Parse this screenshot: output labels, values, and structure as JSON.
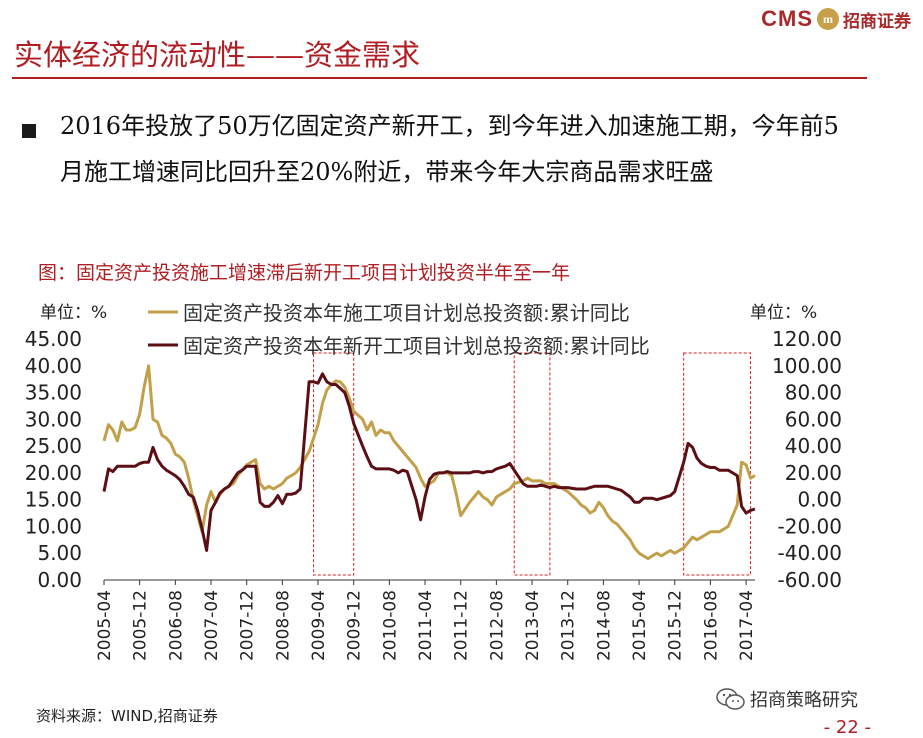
{
  "brand": {
    "cms": "CMS",
    "seal": "m",
    "name_cn": "招商证券",
    "accent": "#a8292a"
  },
  "slide": {
    "title": "实体经济的流动性——资金需求",
    "bullet_text": "2016年投放了50万亿固定资产新开工，到今年进入加速施工期，今年前5月施工增速同比回升至20%附近，带来今年大宗商品需求旺盛",
    "accent": "#b01e23"
  },
  "chart_data": {
    "type": "line",
    "title": "图：固定资产投资施工增速滞后新开工项目计划投资半年至一年",
    "unit_left": "单位：%",
    "unit_right": "单位：%",
    "x_ticks": [
      "2005-04",
      "2005-12",
      "2006-08",
      "2007-04",
      "2007-12",
      "2008-08",
      "2009-04",
      "2009-12",
      "2010-08",
      "2011-04",
      "2011-12",
      "2012-08",
      "2013-04",
      "2013-12",
      "2014-08",
      "2015-04",
      "2015-12",
      "2016-08",
      "2017-04"
    ],
    "x_range": [
      "2005-04",
      "2017-06"
    ],
    "y_left": {
      "range": [
        0,
        45
      ],
      "step": 5,
      "tick_labels": [
        "0.00",
        "5.00",
        "10.00",
        "15.00",
        "20.00",
        "25.00",
        "30.00",
        "35.00",
        "40.00",
        "45.00"
      ]
    },
    "y_right": {
      "range": [
        -60,
        120
      ],
      "step": 20,
      "tick_labels": [
        "-60.00",
        "-40.00",
        "-20.00",
        "0.00",
        "20.00",
        "40.00",
        "60.00",
        "80.00",
        "100.00",
        "120.00"
      ]
    },
    "series": [
      {
        "name": "固定资产投资本年施工项目计划总投资额:累计同比",
        "axis": "left",
        "color": "#c2a04a",
        "points": [
          [
            "2005-04",
            26
          ],
          [
            "2005-05",
            29
          ],
          [
            "2005-06",
            28
          ],
          [
            "2005-07",
            26
          ],
          [
            "2005-08",
            29.5
          ],
          [
            "2005-09",
            28
          ],
          [
            "2005-10",
            28
          ],
          [
            "2005-11",
            28.5
          ],
          [
            "2005-12",
            31
          ],
          [
            "2006-01",
            36
          ],
          [
            "2006-02",
            40
          ],
          [
            "2006-03",
            30
          ],
          [
            "2006-04",
            29.5
          ],
          [
            "2006-05",
            27
          ],
          [
            "2006-06",
            26.5
          ],
          [
            "2006-07",
            25.5
          ],
          [
            "2006-08",
            23.5
          ],
          [
            "2006-09",
            23
          ],
          [
            "2006-10",
            22
          ],
          [
            "2006-11",
            19
          ],
          [
            "2006-12",
            15
          ],
          [
            "2007-02",
            9
          ],
          [
            "2007-03",
            14
          ],
          [
            "2007-04",
            16.5
          ],
          [
            "2007-05",
            14.5
          ],
          [
            "2007-06",
            16
          ],
          [
            "2007-07",
            17
          ],
          [
            "2007-08",
            17.5
          ],
          [
            "2007-09",
            18
          ],
          [
            "2007-10",
            19.5
          ],
          [
            "2007-11",
            20.5
          ],
          [
            "2007-12",
            21.5
          ],
          [
            "2008-02",
            22.5
          ],
          [
            "2008-03",
            18
          ],
          [
            "2008-04",
            17
          ],
          [
            "2008-05",
            17.5
          ],
          [
            "2008-06",
            17
          ],
          [
            "2008-07",
            17.5
          ],
          [
            "2008-08",
            18
          ],
          [
            "2008-09",
            19
          ],
          [
            "2008-10",
            19.5
          ],
          [
            "2008-11",
            20
          ],
          [
            "2008-12",
            21
          ],
          [
            "2009-02",
            24
          ],
          [
            "2009-03",
            26.5
          ],
          [
            "2009-04",
            29
          ],
          [
            "2009-05",
            33
          ],
          [
            "2009-06",
            35.5
          ],
          [
            "2009-07",
            36.5
          ],
          [
            "2009-08",
            37.2
          ],
          [
            "2009-09",
            37
          ],
          [
            "2009-10",
            36
          ],
          [
            "2009-11",
            34
          ],
          [
            "2009-12",
            31.5
          ],
          [
            "2010-02",
            30
          ],
          [
            "2010-03",
            28
          ],
          [
            "2010-04",
            29.5
          ],
          [
            "2010-05",
            27
          ],
          [
            "2010-06",
            28
          ],
          [
            "2010-07",
            27.5
          ],
          [
            "2010-08",
            27.5
          ],
          [
            "2010-09",
            26
          ],
          [
            "2010-10",
            25
          ],
          [
            "2010-11",
            24
          ],
          [
            "2010-12",
            23
          ],
          [
            "2011-02",
            21
          ],
          [
            "2011-03",
            19
          ],
          [
            "2011-04",
            17.5
          ],
          [
            "2011-05",
            18
          ],
          [
            "2011-06",
            18.5
          ],
          [
            "2011-07",
            20
          ],
          [
            "2011-08",
            20
          ],
          [
            "2011-09",
            20
          ],
          [
            "2011-10",
            19.5
          ],
          [
            "2011-11",
            16
          ],
          [
            "2011-12",
            12
          ],
          [
            "2012-02",
            14.5
          ],
          [
            "2012-03",
            15.5
          ],
          [
            "2012-04",
            16.5
          ],
          [
            "2012-05",
            15.5
          ],
          [
            "2012-06",
            15
          ],
          [
            "2012-07",
            14
          ],
          [
            "2012-08",
            15.5
          ],
          [
            "2012-09",
            16
          ],
          [
            "2012-10",
            16.5
          ],
          [
            "2012-11",
            17
          ],
          [
            "2012-12",
            18
          ],
          [
            "2013-02",
            18.5
          ],
          [
            "2013-03",
            19
          ],
          [
            "2013-04",
            18.5
          ],
          [
            "2013-05",
            18.5
          ],
          [
            "2013-06",
            18.5
          ],
          [
            "2013-07",
            18
          ],
          [
            "2013-08",
            18
          ],
          [
            "2013-09",
            18
          ],
          [
            "2013-10",
            17.5
          ],
          [
            "2013-11",
            17
          ],
          [
            "2013-12",
            16.5
          ],
          [
            "2014-02",
            15
          ],
          [
            "2014-03",
            14
          ],
          [
            "2014-04",
            13.5
          ],
          [
            "2014-05",
            12.5
          ],
          [
            "2014-06",
            13
          ],
          [
            "2014-07",
            14.5
          ],
          [
            "2014-08",
            13.5
          ],
          [
            "2014-09",
            12
          ],
          [
            "2014-10",
            11
          ],
          [
            "2014-11",
            10.5
          ],
          [
            "2014-12",
            9.5
          ],
          [
            "2015-02",
            7.5
          ],
          [
            "2015-03",
            6
          ],
          [
            "2015-04",
            5
          ],
          [
            "2015-05",
            4.5
          ],
          [
            "2015-06",
            4
          ],
          [
            "2015-07",
            4.5
          ],
          [
            "2015-08",
            5
          ],
          [
            "2015-09",
            4.5
          ],
          [
            "2015-10",
            5
          ],
          [
            "2015-11",
            5.5
          ],
          [
            "2015-12",
            5
          ],
          [
            "2016-02",
            6
          ],
          [
            "2016-03",
            7
          ],
          [
            "2016-04",
            8
          ],
          [
            "2016-05",
            7.5
          ],
          [
            "2016-06",
            8
          ],
          [
            "2016-07",
            8.5
          ],
          [
            "2016-08",
            9
          ],
          [
            "2016-09",
            9
          ],
          [
            "2016-10",
            9
          ],
          [
            "2016-11",
            9.5
          ],
          [
            "2016-12",
            10
          ],
          [
            "2017-02",
            14
          ],
          [
            "2017-03",
            22
          ],
          [
            "2017-04",
            21.5
          ],
          [
            "2017-05",
            19
          ],
          [
            "2017-06",
            19.5
          ]
        ]
      },
      {
        "name": "固定资产投资本年新开工项目计划总投资额:累计同比",
        "axis": "right",
        "color": "#5b0f14",
        "points": [
          [
            "2005-04",
            6
          ],
          [
            "2005-05",
            23
          ],
          [
            "2005-06",
            21
          ],
          [
            "2005-07",
            25
          ],
          [
            "2005-08",
            25
          ],
          [
            "2005-09",
            25
          ],
          [
            "2005-10",
            25
          ],
          [
            "2005-11",
            25
          ],
          [
            "2005-12",
            27
          ],
          [
            "2006-01",
            28
          ],
          [
            "2006-02",
            28
          ],
          [
            "2006-03",
            39
          ],
          [
            "2006-04",
            30
          ],
          [
            "2006-05",
            25
          ],
          [
            "2006-06",
            22
          ],
          [
            "2006-07",
            20
          ],
          [
            "2006-08",
            18
          ],
          [
            "2006-09",
            15
          ],
          [
            "2006-10",
            10
          ],
          [
            "2006-11",
            4
          ],
          [
            "2006-12",
            2
          ],
          [
            "2007-01",
            -8
          ],
          [
            "2007-02",
            -22
          ],
          [
            "2007-03",
            -38
          ],
          [
            "2007-04",
            -8
          ],
          [
            "2007-05",
            -2
          ],
          [
            "2007-06",
            5
          ],
          [
            "2007-07",
            8
          ],
          [
            "2007-08",
            10
          ],
          [
            "2007-09",
            15
          ],
          [
            "2007-10",
            20
          ],
          [
            "2007-11",
            22
          ],
          [
            "2007-12",
            25
          ],
          [
            "2008-02",
            25
          ],
          [
            "2008-03",
            -2
          ],
          [
            "2008-04",
            -5
          ],
          [
            "2008-05",
            -5
          ],
          [
            "2008-06",
            -2
          ],
          [
            "2008-07",
            3
          ],
          [
            "2008-08",
            -3
          ],
          [
            "2008-09",
            4
          ],
          [
            "2008-10",
            4
          ],
          [
            "2008-11",
            5
          ],
          [
            "2008-12",
            8
          ],
          [
            "2009-02",
            88
          ],
          [
            "2009-03",
            88
          ],
          [
            "2009-04",
            87
          ],
          [
            "2009-05",
            94
          ],
          [
            "2009-06",
            88
          ],
          [
            "2009-07",
            86
          ],
          [
            "2009-08",
            86
          ],
          [
            "2009-09",
            83
          ],
          [
            "2009-10",
            80
          ],
          [
            "2009-11",
            70
          ],
          [
            "2009-12",
            57
          ],
          [
            "2010-02",
            40
          ],
          [
            "2010-03",
            32
          ],
          [
            "2010-04",
            25
          ],
          [
            "2010-05",
            23
          ],
          [
            "2010-06",
            23
          ],
          [
            "2010-07",
            23
          ],
          [
            "2010-08",
            23
          ],
          [
            "2010-09",
            22
          ],
          [
            "2010-10",
            20
          ],
          [
            "2010-11",
            22
          ],
          [
            "2010-12",
            21
          ],
          [
            "2011-02",
            0
          ],
          [
            "2011-03",
            -15
          ],
          [
            "2011-04",
            2
          ],
          [
            "2011-05",
            15
          ],
          [
            "2011-06",
            19
          ],
          [
            "2011-07",
            20
          ],
          [
            "2011-08",
            20
          ],
          [
            "2011-09",
            21
          ],
          [
            "2011-10",
            20
          ],
          [
            "2011-11",
            20
          ],
          [
            "2011-12",
            20
          ],
          [
            "2012-02",
            20
          ],
          [
            "2012-03",
            21
          ],
          [
            "2012-04",
            21
          ],
          [
            "2012-05",
            20
          ],
          [
            "2012-06",
            21
          ],
          [
            "2012-07",
            21
          ],
          [
            "2012-08",
            23
          ],
          [
            "2012-09",
            24
          ],
          [
            "2012-10",
            25
          ],
          [
            "2012-11",
            27
          ],
          [
            "2012-12",
            22
          ],
          [
            "2013-02",
            12
          ],
          [
            "2013-03",
            10
          ],
          [
            "2013-04",
            10
          ],
          [
            "2013-05",
            10
          ],
          [
            "2013-06",
            11
          ],
          [
            "2013-07",
            10
          ],
          [
            "2013-08",
            9
          ],
          [
            "2013-09",
            10
          ],
          [
            "2013-10",
            9
          ],
          [
            "2013-11",
            9
          ],
          [
            "2013-12",
            9
          ],
          [
            "2014-02",
            8
          ],
          [
            "2014-03",
            8
          ],
          [
            "2014-04",
            8
          ],
          [
            "2014-05",
            9
          ],
          [
            "2014-06",
            10
          ],
          [
            "2014-07",
            10
          ],
          [
            "2014-08",
            10
          ],
          [
            "2014-09",
            10
          ],
          [
            "2014-10",
            9
          ],
          [
            "2014-11",
            8
          ],
          [
            "2014-12",
            7
          ],
          [
            "2015-02",
            2
          ],
          [
            "2015-03",
            -2
          ],
          [
            "2015-04",
            -2
          ],
          [
            "2015-05",
            1
          ],
          [
            "2015-06",
            1
          ],
          [
            "2015-07",
            1
          ],
          [
            "2015-08",
            0
          ],
          [
            "2015-09",
            1
          ],
          [
            "2015-10",
            2
          ],
          [
            "2015-11",
            3
          ],
          [
            "2015-12",
            6
          ],
          [
            "2016-02",
            28
          ],
          [
            "2016-03",
            42
          ],
          [
            "2016-04",
            39
          ],
          [
            "2016-05",
            31
          ],
          [
            "2016-06",
            27
          ],
          [
            "2016-07",
            25
          ],
          [
            "2016-08",
            24
          ],
          [
            "2016-09",
            24
          ],
          [
            "2016-10",
            22
          ],
          [
            "2016-11",
            22
          ],
          [
            "2016-12",
            22
          ],
          [
            "2017-02",
            18
          ],
          [
            "2017-03",
            -5
          ],
          [
            "2017-04",
            -10
          ],
          [
            "2017-05",
            -8
          ],
          [
            "2017-06",
            -7
          ]
        ]
      }
    ],
    "highlight_windows": [
      {
        "start": "2009-03",
        "end": "2009-12"
      },
      {
        "start": "2012-12",
        "end": "2013-08"
      },
      {
        "start": "2016-02",
        "end": "2017-05"
      }
    ],
    "source": "资料来源：WIND,招商证券"
  },
  "footer": {
    "wechat_label": "招商策略研究",
    "page_number": "- 22 -"
  }
}
